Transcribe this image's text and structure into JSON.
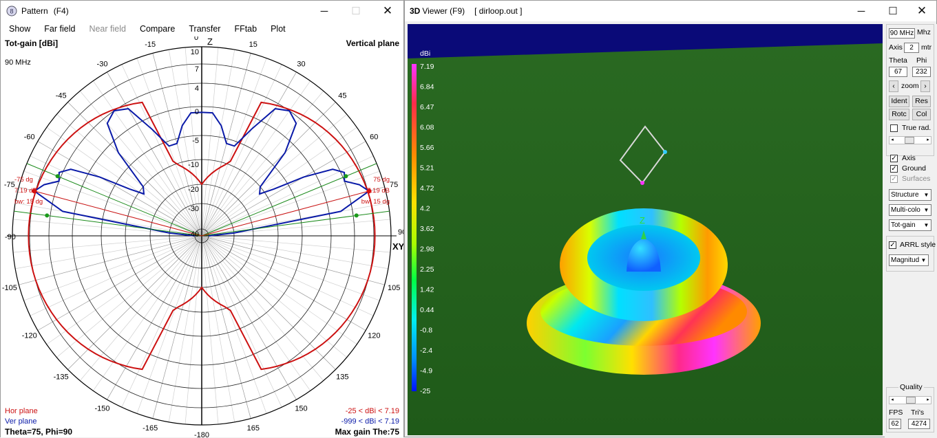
{
  "pattern_window": {
    "title": "Pattern",
    "hotkey": "(F4)",
    "menu": [
      {
        "label": "Show",
        "enabled": true
      },
      {
        "label": "Far field",
        "enabled": true
      },
      {
        "label": "Near field",
        "enabled": false
      },
      {
        "label": "Compare",
        "enabled": true
      },
      {
        "label": "Transfer",
        "enabled": true
      },
      {
        "label": "FFtab",
        "enabled": true
      },
      {
        "label": "Plot",
        "enabled": true
      }
    ],
    "plot": {
      "top_left": "Tot-gain [dBi]",
      "top_right": "Vertical plane",
      "freq": "90 MHz",
      "axis_z": "Z",
      "axis_xy": "XY",
      "ring_labels": [
        "10",
        "7",
        "4",
        "0",
        "-5",
        "-10",
        "-20",
        "-30",
        "-40"
      ],
      "angle_labels": {
        "a0": "0",
        "a15": "15",
        "a30": "30",
        "a45": "45",
        "a60": "60",
        "a75": "75",
        "a90": "90",
        "a105": "105",
        "a120": "120",
        "a135": "135",
        "a150": "150",
        "a165": "165",
        "a180": "-180",
        "m15": "-15",
        "m30": "-30",
        "m45": "-45",
        "m60": "-60",
        "m75": "-75",
        "m90": "-90",
        "m105": "-105",
        "m120": "-120",
        "m135": "-135",
        "m150": "-150",
        "m165": "-165"
      },
      "marker_left": {
        "angle": "-75 dg",
        "gain": "7.19 dB",
        "bw": "bw: 15 dg"
      },
      "marker_right": {
        "angle": "75 dg",
        "gain": "7.19 dB",
        "bw": "bw: 15 dg"
      },
      "legend_hor": "Hor plane",
      "legend_ver": "Ver plane",
      "range_hor": "-25 < dBi < 7.19",
      "range_ver": "-999 < dBi < 7.19",
      "footer_left": "Theta=75, Phi=90",
      "footer_right": "Max gain The:75",
      "colors": {
        "hor": "#cc1111",
        "ver": "#0a1aa8",
        "grid": "#000000",
        "marker_line": "#1a8a1a"
      }
    },
    "chart_data": {
      "type": "polar",
      "title": "Vertical plane",
      "unit": "dBi",
      "max_gain_dbi": 7.19,
      "max_gain_theta": 75,
      "beamwidth_deg": 15,
      "series": [
        {
          "name": "Hor plane",
          "range": "-25 < dBi < 7.19"
        },
        {
          "name": "Ver plane",
          "range": "-999 < dBi < 7.19"
        }
      ]
    }
  },
  "viewer_window": {
    "title_prefix": "3D",
    "title": "Viewer (F9)",
    "file": "[  dirloop.out ]",
    "colorbar": {
      "unit": "dBi",
      "ticks": [
        "7.19",
        "6.84",
        "6.47",
        "6.08",
        "5.66",
        "5.21",
        "4.72",
        "4.2",
        "3.62",
        "2.98",
        "2.25",
        "1.42",
        "0.44",
        "-0.8",
        "-2.4",
        "-4.9",
        "-25"
      ]
    },
    "panel": {
      "freq_value": "90 MHz",
      "freq_unit": "Mhz",
      "axis_label": "Axis",
      "axis_value": "2",
      "axis_unit": "mtr",
      "theta_label": "Theta",
      "phi_label": "Phi",
      "theta_value": "67",
      "phi_value": "232",
      "zoom_label": "zoom",
      "ident_button": "Ident",
      "res_button": "Res",
      "rotc_button": "Rotc",
      "col_button": "Col",
      "true_rad_label": "True rad.",
      "axis_check_label": "Axis",
      "ground_check_label": "Ground",
      "surfaces_check_label": "Surfaces",
      "structure_select": "Structure",
      "multicolor_select": "Multi-colo",
      "totgain_select": "Tot-gain",
      "arrl_label": "ARRL style",
      "magnitude_select": "Magnitud",
      "quality_label": "Quality",
      "fps_label": "FPS",
      "tris_label": "Tri's",
      "fps_value": "62",
      "tris_value": "4274"
    }
  }
}
